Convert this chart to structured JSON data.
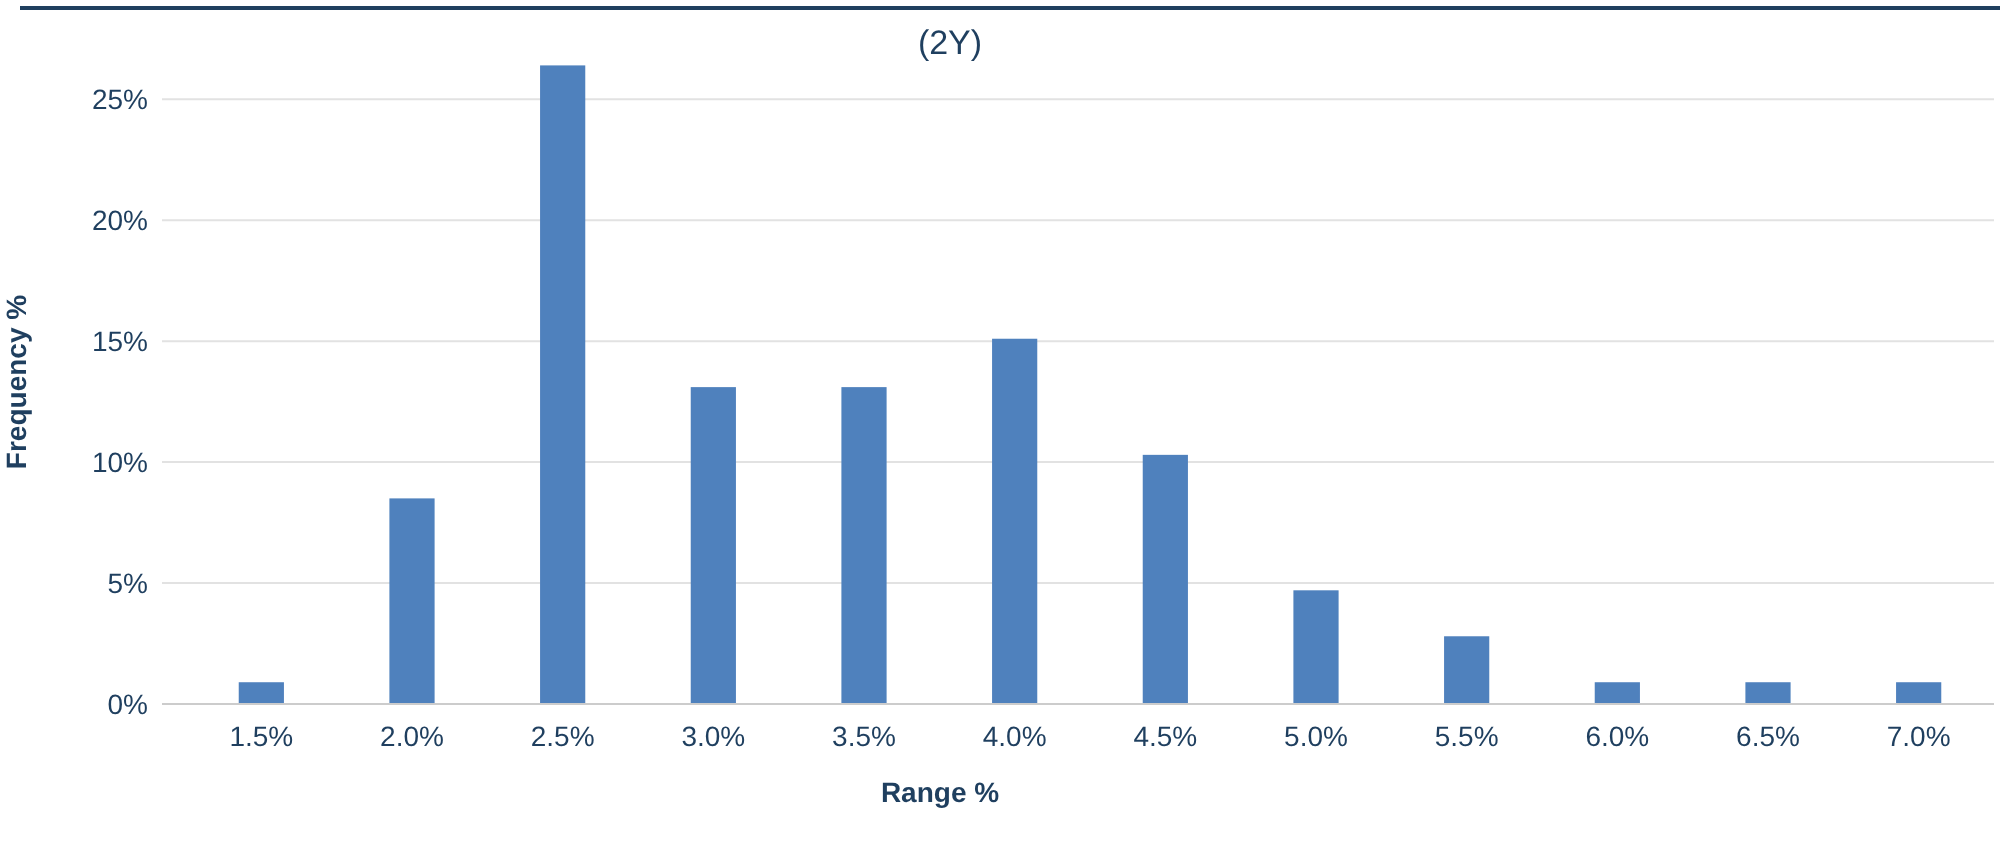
{
  "chart_data": {
    "type": "bar",
    "title": "(2Y)",
    "xlabel": "Range %",
    "ylabel": "Frequency %",
    "categories": [
      "1.5%",
      "2.0%",
      "2.5%",
      "3.0%",
      "3.5%",
      "4.0%",
      "4.5%",
      "5.0%",
      "5.5%",
      "6.0%",
      "6.5%",
      "7.0%"
    ],
    "values": [
      0.9,
      8.5,
      26.4,
      13.1,
      13.1,
      15.1,
      10.3,
      4.7,
      2.8,
      0.9,
      0.9,
      0.9
    ],
    "color": "#4f81bd",
    "ylim": [
      0,
      26.4
    ],
    "yticks": [
      {
        "value": 0,
        "label": "0%"
      },
      {
        "value": 5,
        "label": "5%"
      },
      {
        "value": 10,
        "label": "10%"
      },
      {
        "value": 15,
        "label": "15%"
      },
      {
        "value": 20,
        "label": "20%"
      },
      {
        "value": 25,
        "label": "25%"
      }
    ],
    "grid": "y"
  }
}
